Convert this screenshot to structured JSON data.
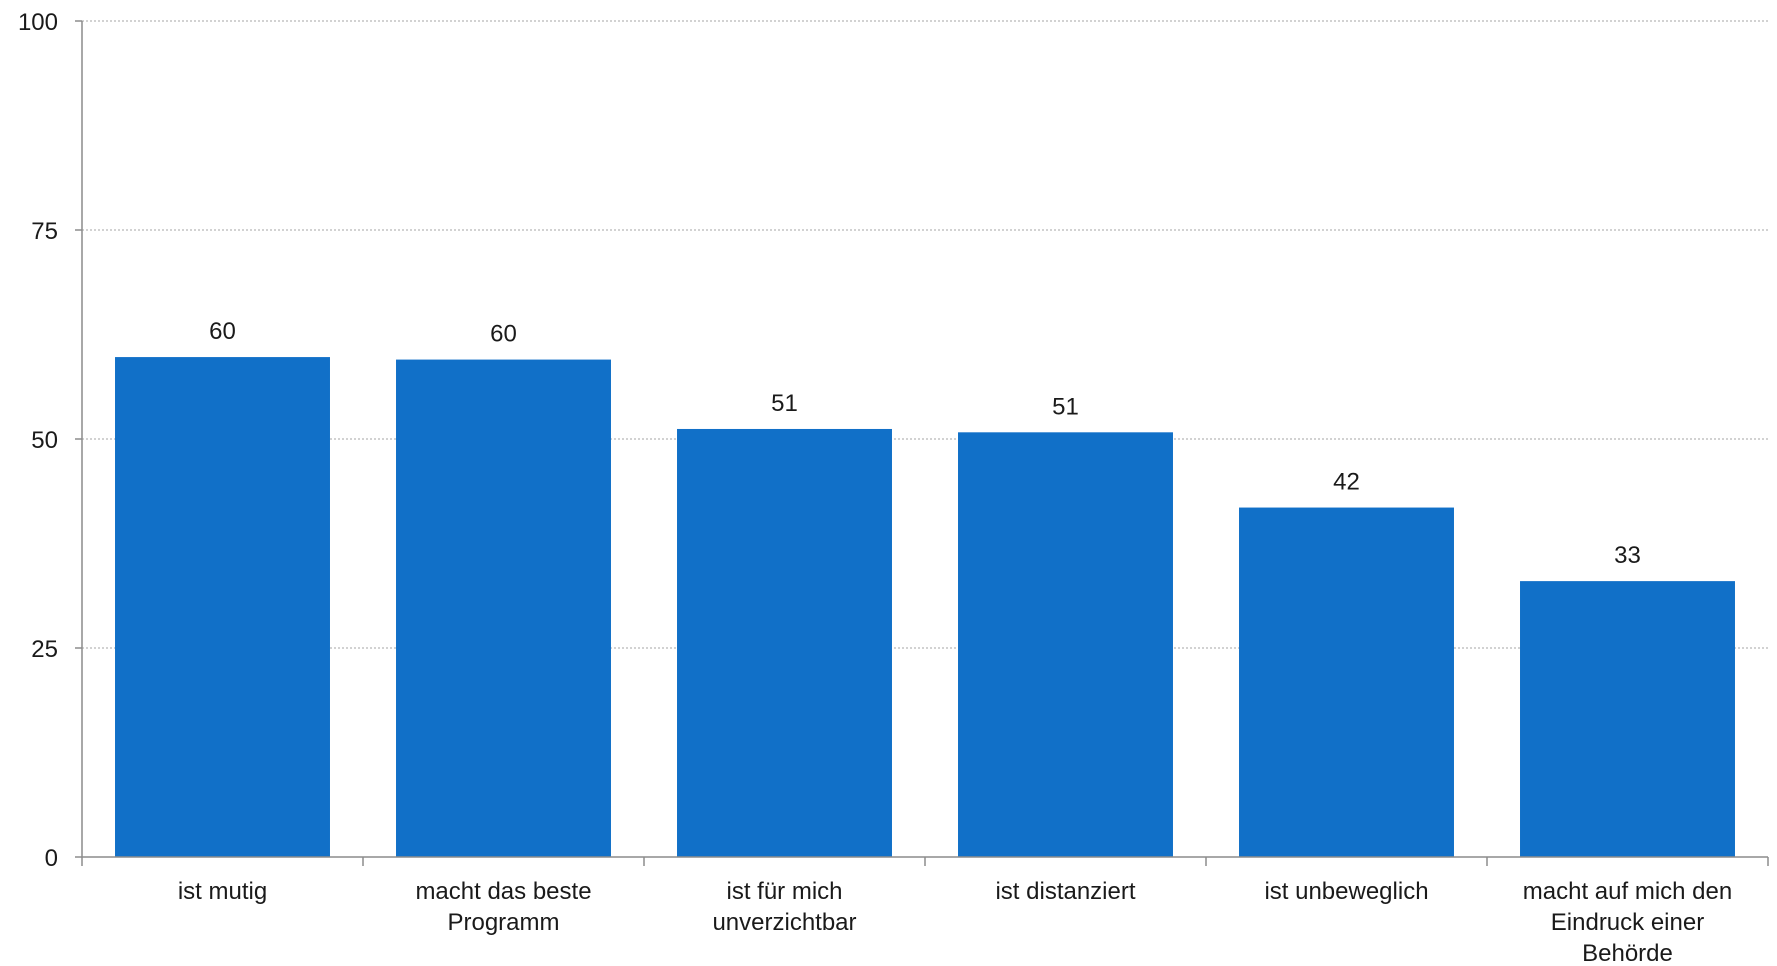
{
  "chart_data": {
    "type": "bar",
    "categories": [
      "ist mutig",
      "macht das beste Programm",
      "ist für  mich unverzichtbar",
      "ist distanziert",
      "ist unbeweglich",
      "macht auf mich den Eindruck einer Behörde"
    ],
    "category_lines": [
      [
        "ist mutig"
      ],
      [
        "macht das beste",
        "Programm"
      ],
      [
        "ist für  mich",
        "unverzichtbar"
      ],
      [
        "ist distanziert"
      ],
      [
        "ist unbeweglich"
      ],
      [
        "macht auf mich den",
        "Eindruck einer",
        "Behörde"
      ]
    ],
    "values": [
      59.8,
      59.5,
      51.2,
      50.8,
      41.8,
      33.0
    ],
    "data_labels": [
      "60",
      "60",
      "51",
      "51",
      "42",
      "33"
    ],
    "yticks": [
      0,
      25,
      50,
      75,
      100
    ],
    "ylim": [
      0,
      100
    ],
    "grid": true,
    "bar_color": "#1170c8",
    "grid_color": "#a6a6a6",
    "axis_color": "#8c8c8c"
  }
}
